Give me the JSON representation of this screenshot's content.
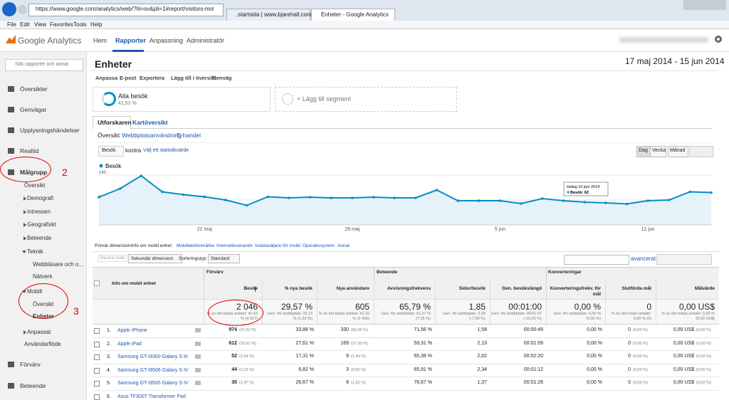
{
  "browser": {
    "url": "https://www.google.com/analytics/web/?hl=sv&pli=1#report/visitors-mobile-device",
    "tabs": [
      ".startsida | www.bjarehall.com",
      "Enheter - Google Analytics"
    ],
    "menu": [
      "File",
      "Edit",
      "View",
      "Favorites",
      "Tools",
      "Help"
    ]
  },
  "header": {
    "logo": "Google Analytics",
    "nav": [
      "Hem",
      "Rapporter",
      "Anpassning",
      "Administratör"
    ]
  },
  "sidebar": {
    "search": "Sök rapporter och annat",
    "items": [
      "Översikter",
      "Genvägar",
      "Upplysningshändelser",
      "Realtid",
      "Målgrupp",
      "Översikt",
      "Demografi",
      "Intressen",
      "Geografiskt",
      "Beteende",
      "Teknik",
      "Webbläsare och o...",
      "Nätverk",
      "Mobilt",
      "Översikt",
      "Enheter",
      "Anpassat",
      "Användarflöde",
      "Förvärv",
      "Beteende"
    ]
  },
  "report": {
    "title": "Enheter",
    "date_range": "17 maj 2014 - 15 jun 2014",
    "actions": [
      "Anpassa",
      "E-post",
      "Exportera",
      "Lägg till i översikt",
      "Genväg"
    ]
  },
  "segments": {
    "name": "Alla besök",
    "share": "41,53 %",
    "add": "+ Lägg till segment"
  },
  "tabs": [
    "Utforskaren",
    "Kartöversikt"
  ],
  "subtabs": [
    "Översikt",
    "Webbplatsanvändning",
    "E-handel"
  ],
  "chart_controls": {
    "metric": "Besök",
    "versus": "kontra",
    "choose": "Välj ett statistikvärde",
    "periods": [
      "Dag",
      "Vecka",
      "Månad"
    ]
  },
  "chart_data": {
    "type": "area",
    "categories": [
      null,
      null,
      null,
      null,
      null,
      "22 maj",
      null,
      null,
      null,
      null,
      null,
      null,
      "29 maj",
      null,
      null,
      null,
      null,
      null,
      null,
      "5 jun",
      null,
      null,
      null,
      null,
      null,
      null,
      "12 jun",
      null,
      null,
      null
    ],
    "series": [
      {
        "name": "Besök",
        "color": "#058dc7",
        "values": [
          78,
          102,
          138,
          93,
          85,
          79,
          70,
          55,
          79,
          76,
          78,
          76,
          76,
          78,
          76,
          76,
          98,
          68,
          68,
          68,
          60,
          74,
          68,
          64,
          62,
          59,
          68,
          70,
          93,
          91
        ]
      }
    ],
    "ylim": [
      0,
      140
    ],
    "yticks": [
      70,
      140
    ],
    "grid": true,
    "tooltip": {
      "title": "tisdag 10 juni 2014",
      "label": "Besök: 62"
    }
  },
  "dimensions": {
    "label": "Primär dimension:",
    "items": [
      "Info om mobil enhet",
      "Mobiltelefonmärke",
      "Internetleverantör",
      "Indataväljare för mobil",
      "Operativsystem",
      "Annat"
    ]
  },
  "table_controls": {
    "plot": "Placera rader",
    "secondary": "Sekundär dimension",
    "sort_label": "Sorteringstyp:",
    "sort": "Standard",
    "advanced": "avancerat"
  },
  "table": {
    "groups": [
      "Förvärv",
      "Beteende",
      "Konverteringar"
    ],
    "columns": [
      "Info om mobil enhet",
      "Besök",
      "% nya besök",
      "Nya användare",
      "Avvisningsfrekvens",
      "Sidor/besök",
      "Gen. besökslängd",
      "Konverteringsfrekv. för mål",
      "Slutförda mål",
      "Målvärde"
    ],
    "totals": [
      {
        "value": "2 046",
        "note": "% av det totala antalet: 41,53 % (4 927)"
      },
      {
        "value": "29,57 %",
        "note": "Gen. för webbplats: 29,13 % (1,53 %)"
      },
      {
        "value": "605",
        "note": "% av det totala antalet: 42,16 % (1 435)"
      },
      {
        "value": "65,79 %",
        "note": "Gen. för webbplats: 61,27 % (7,36 %)"
      },
      {
        "value": "1,85",
        "note": "Gen. för webbplats: 2,00 (-7,60 %)"
      },
      {
        "value": "00:01:00",
        "note": "Gen. för webbplats: 00:01:07 (-10,26 %)"
      },
      {
        "value": "0,00 %",
        "note": "Gen. för webbplats: 0,00 % (0,00 %)"
      },
      {
        "value": "0",
        "note": "% av det totala antalet: 0,00 % (0)"
      },
      {
        "value": "0,00 US$",
        "note": "% av det totala antalet: 0,00 % (0,00 US$)"
      }
    ],
    "rows": [
      {
        "index": "1.",
        "device": "Apple iPhone",
        "cells": [
          {
            "value": "974",
            "note": "(47,61 %)"
          },
          {
            "value": "33,88 %"
          },
          {
            "value": "330",
            "note": "(54,55 %)"
          },
          {
            "value": "71,56 %"
          },
          {
            "value": "1,58"
          },
          {
            "value": "00:00:49"
          },
          {
            "value": "0,00 %"
          },
          {
            "value": "0",
            "note": "(0,00 %)"
          },
          {
            "value": "0,00 US$",
            "note": "(0,00 %)"
          }
        ]
      },
      {
        "index": "2.",
        "device": "Apple iPad",
        "cells": [
          {
            "value": "612",
            "note": "(29,91 %)"
          },
          {
            "value": "27,61 %"
          },
          {
            "value": "169",
            "note": "(27,93 %)"
          },
          {
            "value": "59,31 %"
          },
          {
            "value": "2,13"
          },
          {
            "value": "00:01:09"
          },
          {
            "value": "0,00 %"
          },
          {
            "value": "0",
            "note": "(0,00 %)"
          },
          {
            "value": "0,00 US$",
            "note": "(0,00 %)"
          }
        ]
      },
      {
        "index": "3.",
        "device": "Samsung GT-I9300 Galaxy S III",
        "cells": [
          {
            "value": "52",
            "note": "(2,54 %)"
          },
          {
            "value": "17,31 %"
          },
          {
            "value": "9",
            "note": "(1,49 %)"
          },
          {
            "value": "65,38 %"
          },
          {
            "value": "2,02"
          },
          {
            "value": "00:02:20"
          },
          {
            "value": "0,00 %"
          },
          {
            "value": "0",
            "note": "(0,00 %)"
          },
          {
            "value": "0,00 US$",
            "note": "(0,00 %)"
          }
        ]
      },
      {
        "index": "4.",
        "device": "Samsung GT-I9506 Galaxy S IV",
        "cells": [
          {
            "value": "44",
            "note": "(2,15 %)"
          },
          {
            "value": "6,82 %"
          },
          {
            "value": "3",
            "note": "(0,50 %)"
          },
          {
            "value": "65,91 %"
          },
          {
            "value": "2,34"
          },
          {
            "value": "00:01:12"
          },
          {
            "value": "0,00 %"
          },
          {
            "value": "0",
            "note": "(0,00 %)"
          },
          {
            "value": "0,00 US$",
            "note": "(0,00 %)"
          }
        ]
      },
      {
        "index": "5.",
        "device": "Samsung GT-I9505 Galaxy S IV",
        "cells": [
          {
            "value": "30",
            "note": "(1,47 %)"
          },
          {
            "value": "26,67 %"
          },
          {
            "value": "8",
            "note": "(1,32 %)"
          },
          {
            "value": "76,67 %"
          },
          {
            "value": "1,37"
          },
          {
            "value": "00:01:26"
          },
          {
            "value": "0,00 %"
          },
          {
            "value": "0",
            "note": "(0,00 %)"
          },
          {
            "value": "0,00 US$",
            "note": "(0,00 %)"
          }
        ]
      },
      {
        "index": "6.",
        "device": "Asus TF300T Transformer Pad",
        "cells": []
      }
    ]
  },
  "annotations": [
    "2",
    "3"
  ]
}
